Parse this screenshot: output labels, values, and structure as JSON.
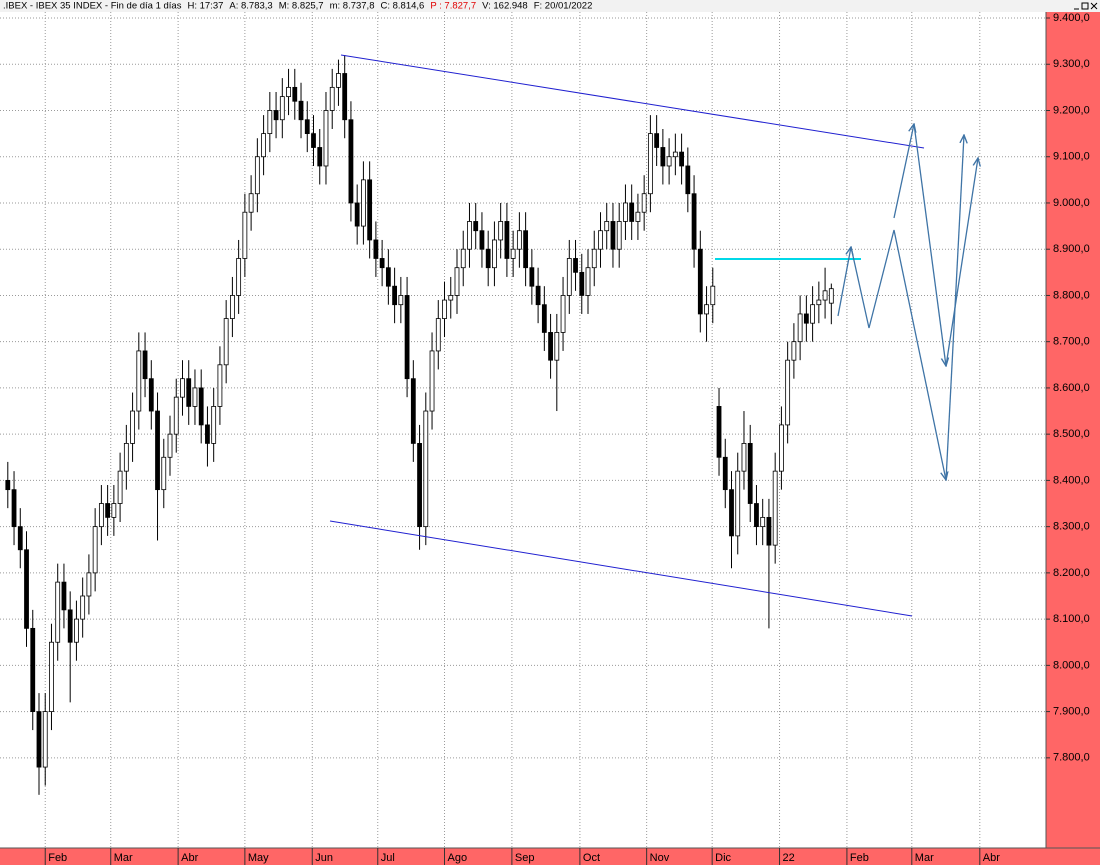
{
  "chart_data": {
    "type": "candlestick",
    "title": ".IBEX - IBEX 35 INDEX - Fin de día 1 días",
    "info": [
      {
        "text": "H: 17:37",
        "color": "#000000"
      },
      {
        "text": "A: 8.783,3",
        "color": "#000000"
      },
      {
        "text": "M: 8.825,7",
        "color": "#000000"
      },
      {
        "text": "m: 8.737,8",
        "color": "#000000"
      },
      {
        "text": "C: 8.814,6",
        "color": "#000000"
      },
      {
        "text": "P : 7.827,7",
        "color": "#e00000"
      },
      {
        "text": "V: 162.948",
        "color": "#000000"
      },
      {
        "text": "F: 20/01/2022",
        "color": "#000000"
      }
    ],
    "open": [
      8400,
      8380,
      8300,
      8250,
      8080,
      7900,
      7780,
      7900,
      8050,
      8180,
      8120,
      8050,
      8100,
      8150,
      8200,
      8300,
      8350,
      8320,
      8350,
      8420,
      8480,
      8550,
      8680,
      8620,
      8550,
      8380,
      8450,
      8500,
      8580,
      8620,
      8560,
      8600,
      8520,
      8480,
      8560,
      8650,
      8750,
      8800,
      8880,
      8980,
      9020,
      9100,
      9150,
      9200,
      9180,
      9230,
      9250,
      9220,
      9180,
      9150,
      9120,
      9080,
      9200,
      9250,
      9280,
      9180,
      9000,
      8950,
      9050,
      8920,
      8880,
      8860,
      8820,
      8780,
      8800,
      8620,
      8480,
      8300,
      8550,
      8680,
      8750,
      8790,
      8800,
      8860,
      8900,
      8960,
      8940,
      8900,
      8860,
      8920,
      8960,
      8880,
      8900,
      8940,
      8860,
      8820,
      8780,
      8720,
      8660,
      8720,
      8800,
      8880,
      8850,
      8800,
      8860,
      8900,
      8940,
      8960,
      8900,
      8960,
      9000,
      8960,
      8980,
      9020,
      9150,
      9120,
      9080,
      9100,
      9110,
      9080,
      9020,
      8900,
      8760,
      8780,
      8560,
      8450,
      8380,
      8280,
      8420,
      8480,
      8350,
      8300,
      8320,
      8260,
      8420,
      8520,
      8660,
      8700,
      8760,
      8740,
      8780,
      8790,
      8783.3
    ],
    "high": [
      8440,
      8420,
      8340,
      8290,
      8120,
      7940,
      7940,
      8090,
      8220,
      8220,
      8160,
      8140,
      8190,
      8240,
      8340,
      8390,
      8390,
      8390,
      8460,
      8520,
      8590,
      8720,
      8720,
      8660,
      8590,
      8490,
      8540,
      8620,
      8660,
      8660,
      8640,
      8640,
      8560,
      8600,
      8690,
      8790,
      8840,
      8920,
      9020,
      9060,
      9140,
      9190,
      9240,
      9240,
      9270,
      9290,
      9290,
      9260,
      9220,
      9190,
      9160,
      9240,
      9290,
      9310,
      9320,
      9220,
      9040,
      9090,
      9090,
      8960,
      8920,
      8900,
      8860,
      8840,
      8840,
      8660,
      8520,
      8590,
      8720,
      8790,
      8830,
      8840,
      8900,
      8940,
      9000,
      9000,
      8980,
      8940,
      8960,
      9000,
      9000,
      8940,
      8980,
      8980,
      8900,
      8860,
      8820,
      8760,
      8760,
      8840,
      8920,
      8920,
      8890,
      8900,
      8940,
      8980,
      9000,
      9000,
      9000,
      9040,
      9040,
      9020,
      9060,
      9190,
      9190,
      9160,
      9140,
      9150,
      9150,
      9120,
      9060,
      8940,
      8820,
      8860,
      8600,
      8490,
      8420,
      8460,
      8550,
      8520,
      8390,
      8360,
      8360,
      8460,
      8560,
      8700,
      8740,
      8800,
      8800,
      8820,
      8830,
      8860,
      8825.7
    ],
    "low": [
      8340,
      8260,
      8210,
      8040,
      7860,
      7720,
      7740,
      7860,
      8010,
      8080,
      7920,
      8010,
      8060,
      8110,
      8160,
      8260,
      8280,
      8280,
      8310,
      8380,
      8440,
      8510,
      8580,
      8510,
      8270,
      8340,
      8410,
      8460,
      8540,
      8520,
      8520,
      8480,
      8430,
      8440,
      8520,
      8610,
      8710,
      8760,
      8840,
      8940,
      8980,
      9060,
      9110,
      9140,
      9140,
      9190,
      9180,
      9140,
      9110,
      9080,
      9040,
      9040,
      9160,
      9210,
      9140,
      8960,
      8910,
      8910,
      8880,
      8840,
      8820,
      8780,
      8740,
      8740,
      8580,
      8440,
      8250,
      8260,
      8510,
      8640,
      8710,
      8750,
      8760,
      8820,
      8860,
      8900,
      8860,
      8820,
      8820,
      8880,
      8840,
      8840,
      8860,
      8820,
      8780,
      8740,
      8680,
      8620,
      8550,
      8680,
      8760,
      8810,
      8760,
      8760,
      8820,
      8860,
      8900,
      8860,
      8860,
      8920,
      8920,
      8920,
      8940,
      8980,
      9080,
      9040,
      9040,
      9060,
      9040,
      8980,
      8860,
      8720,
      8700,
      8740,
      8410,
      8340,
      8210,
      8240,
      8380,
      8310,
      8260,
      8260,
      8080,
      8220,
      8380,
      8480,
      8620,
      8660,
      8700,
      8700,
      8740,
      8750,
      8737.8
    ],
    "close": [
      8380,
      8300,
      8250,
      8080,
      7900,
      7780,
      7900,
      8050,
      8180,
      8120,
      8050,
      8100,
      8150,
      8200,
      8300,
      8350,
      8320,
      8350,
      8420,
      8480,
      8550,
      8680,
      8620,
      8550,
      8380,
      8450,
      8500,
      8580,
      8620,
      8560,
      8600,
      8520,
      8480,
      8560,
      8650,
      8750,
      8800,
      8880,
      8980,
      9020,
      9100,
      9150,
      9200,
      9180,
      9230,
      9250,
      9220,
      9180,
      9150,
      9120,
      9080,
      9200,
      9250,
      9280,
      9180,
      9000,
      8950,
      9050,
      8920,
      8880,
      8860,
      8820,
      8780,
      8800,
      8620,
      8480,
      8300,
      8550,
      8680,
      8750,
      8790,
      8800,
      8860,
      8900,
      8960,
      8940,
      8900,
      8860,
      8920,
      8960,
      8880,
      8900,
      8940,
      8860,
      8820,
      8780,
      8720,
      8660,
      8720,
      8800,
      8880,
      8850,
      8800,
      8860,
      8900,
      8940,
      8960,
      8900,
      8960,
      9000,
      8960,
      8980,
      9020,
      9150,
      9120,
      9080,
      9100,
      9110,
      9080,
      9020,
      8900,
      8760,
      8780,
      8820,
      8450,
      8380,
      8280,
      8420,
      8480,
      8350,
      8300,
      8320,
      8260,
      8420,
      8520,
      8660,
      8700,
      8760,
      8740,
      8780,
      8790,
      8810,
      8814.6
    ],
    "up_color": "#ffffff",
    "down_color": "#000000",
    "xlim": [
      -1.25,
      166.25
    ],
    "xticks": [
      {
        "value": 6,
        "label": "Feb"
      },
      {
        "value": 16.5,
        "label": "Mar"
      },
      {
        "value": 27.3,
        "label": "Abr"
      },
      {
        "value": 38,
        "label": "May"
      },
      {
        "value": 48.8,
        "label": "Jun"
      },
      {
        "value": 59.3,
        "label": "Jul"
      },
      {
        "value": 70,
        "label": "Ago"
      },
      {
        "value": 80.8,
        "label": "Sep"
      },
      {
        "value": 91.7,
        "label": "Oct"
      },
      {
        "value": 102.4,
        "label": "Nov"
      },
      {
        "value": 112.9,
        "label": "Dic"
      },
      {
        "value": 123.7,
        "label": "22"
      },
      {
        "value": 134.5,
        "label": "Feb"
      },
      {
        "value": 144.9,
        "label": "Mar"
      },
      {
        "value": 155.8,
        "label": "Abr"
      }
    ],
    "ylim": [
      7605,
      9413
    ],
    "yticks": [
      {
        "value": 7800,
        "label": "7.800,0"
      },
      {
        "value": 7900,
        "label": "7.900,0"
      },
      {
        "value": 8000,
        "label": "8.000,0"
      },
      {
        "value": 8100,
        "label": "8.100,0"
      },
      {
        "value": 8200,
        "label": "8.200,0"
      },
      {
        "value": 8300,
        "label": "8.300,0"
      },
      {
        "value": 8400,
        "label": "8.400,0"
      },
      {
        "value": 8500,
        "label": "8.500,0"
      },
      {
        "value": 8600,
        "label": "8.600,0"
      },
      {
        "value": 8700,
        "label": "8.700,0"
      },
      {
        "value": 8800,
        "label": "8.800,0"
      },
      {
        "value": 8900,
        "label": "8.900,0"
      },
      {
        "value": 9000,
        "label": "9.000,0"
      },
      {
        "value": 9100,
        "label": "9.100,0"
      },
      {
        "value": 9200,
        "label": "9.200,0"
      },
      {
        "value": 9300,
        "label": "9.300,0"
      },
      {
        "value": 9400,
        "label": "9.400,0"
      }
    ],
    "grid": true
  }
}
